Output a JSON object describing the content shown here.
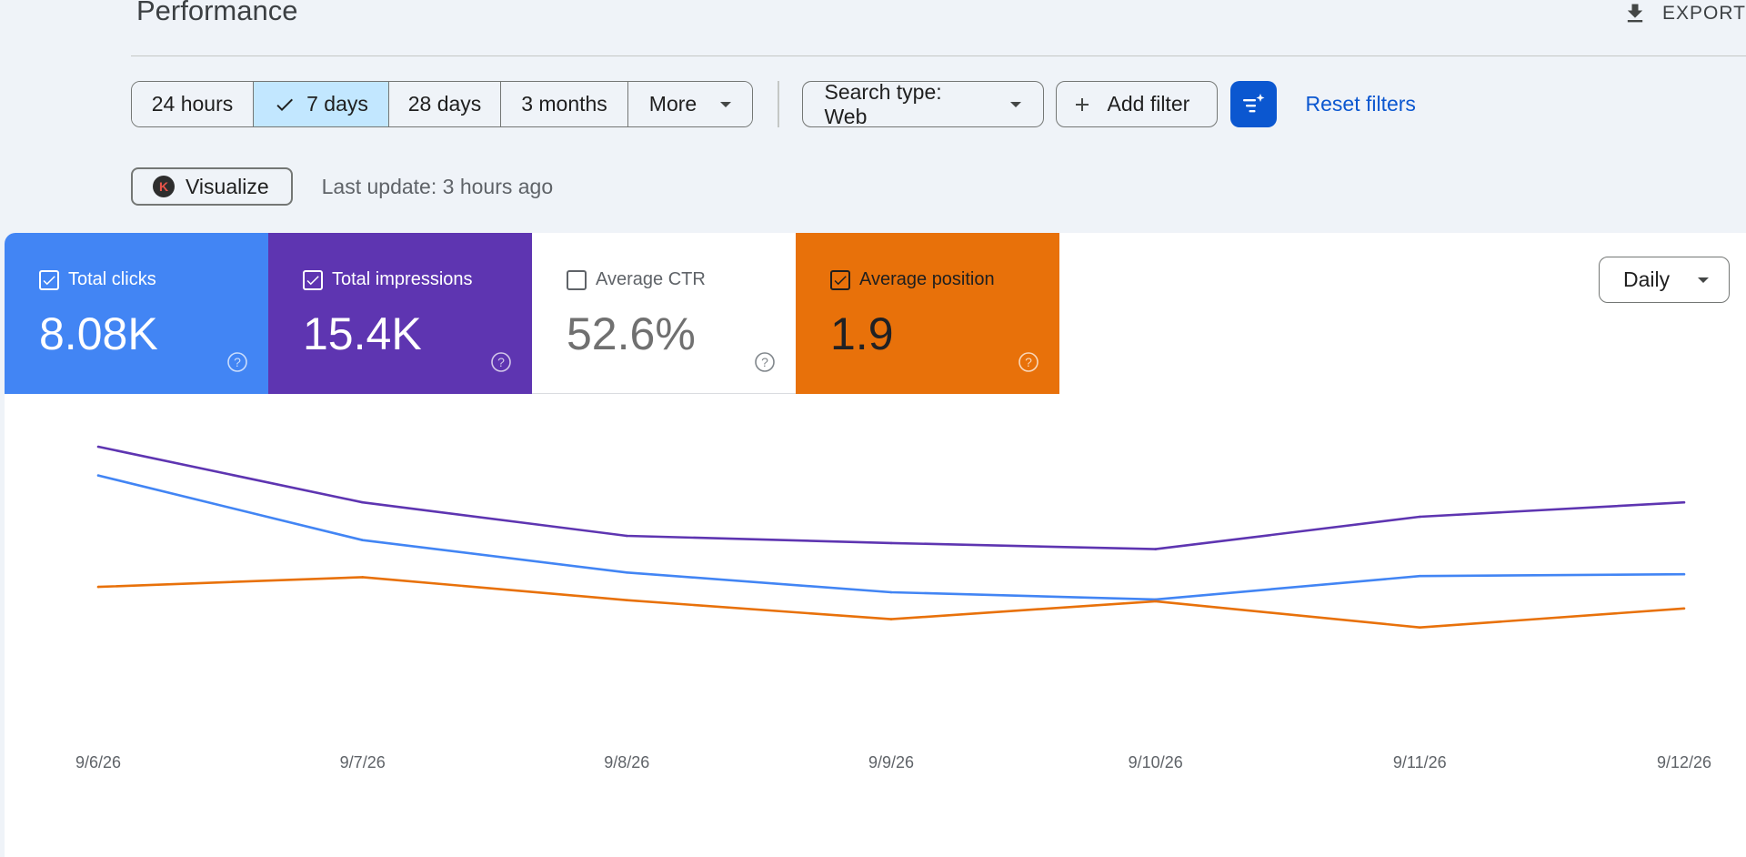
{
  "header": {
    "title": "Performance",
    "export_label": "EXPORT"
  },
  "toolbar": {
    "ranges": [
      {
        "label": "24 hours",
        "selected": false
      },
      {
        "label": "7 days",
        "selected": true
      },
      {
        "label": "28 days",
        "selected": false
      },
      {
        "label": "3 months",
        "selected": false
      },
      {
        "label": "More",
        "selected": false
      }
    ],
    "search_type": "Search type: Web",
    "add_filter": "Add filter",
    "reset_filters": "Reset filters"
  },
  "info": {
    "visualize_label": "Visualize",
    "last_update": "Last update: 3 hours ago"
  },
  "metrics": [
    {
      "label": "Total clicks",
      "value": "8.08K",
      "checked": true,
      "color": "#4285f4"
    },
    {
      "label": "Total impressions",
      "value": "15.4K",
      "checked": true,
      "color": "#5e35b1"
    },
    {
      "label": "Average CTR",
      "value": "52.6%",
      "checked": false,
      "color": "#ffffff"
    },
    {
      "label": "Average position",
      "value": "1.9",
      "checked": true,
      "color": "#e8710a"
    }
  ],
  "granularity": {
    "label": "Daily"
  },
  "chart_data": {
    "type": "line",
    "x": [
      "9/6/26",
      "9/7/26",
      "9/8/26",
      "9/9/26",
      "9/10/26",
      "9/11/26",
      "9/12/26"
    ],
    "grid": false,
    "series": [
      {
        "name": "Total clicks",
        "color": "#4285f4",
        "values": [
          0.92,
          0.74,
          0.65,
          0.595,
          0.575,
          0.64,
          0.645
        ]
      },
      {
        "name": "Total impressions",
        "color": "#5e35b1",
        "values": [
          1.0,
          0.845,
          0.752,
          0.732,
          0.715,
          0.805,
          0.845
        ]
      },
      {
        "name": "Average position",
        "color": "#e8710a",
        "values": [
          0.61,
          0.637,
          0.573,
          0.52,
          0.57,
          0.497,
          0.55
        ]
      }
    ]
  }
}
